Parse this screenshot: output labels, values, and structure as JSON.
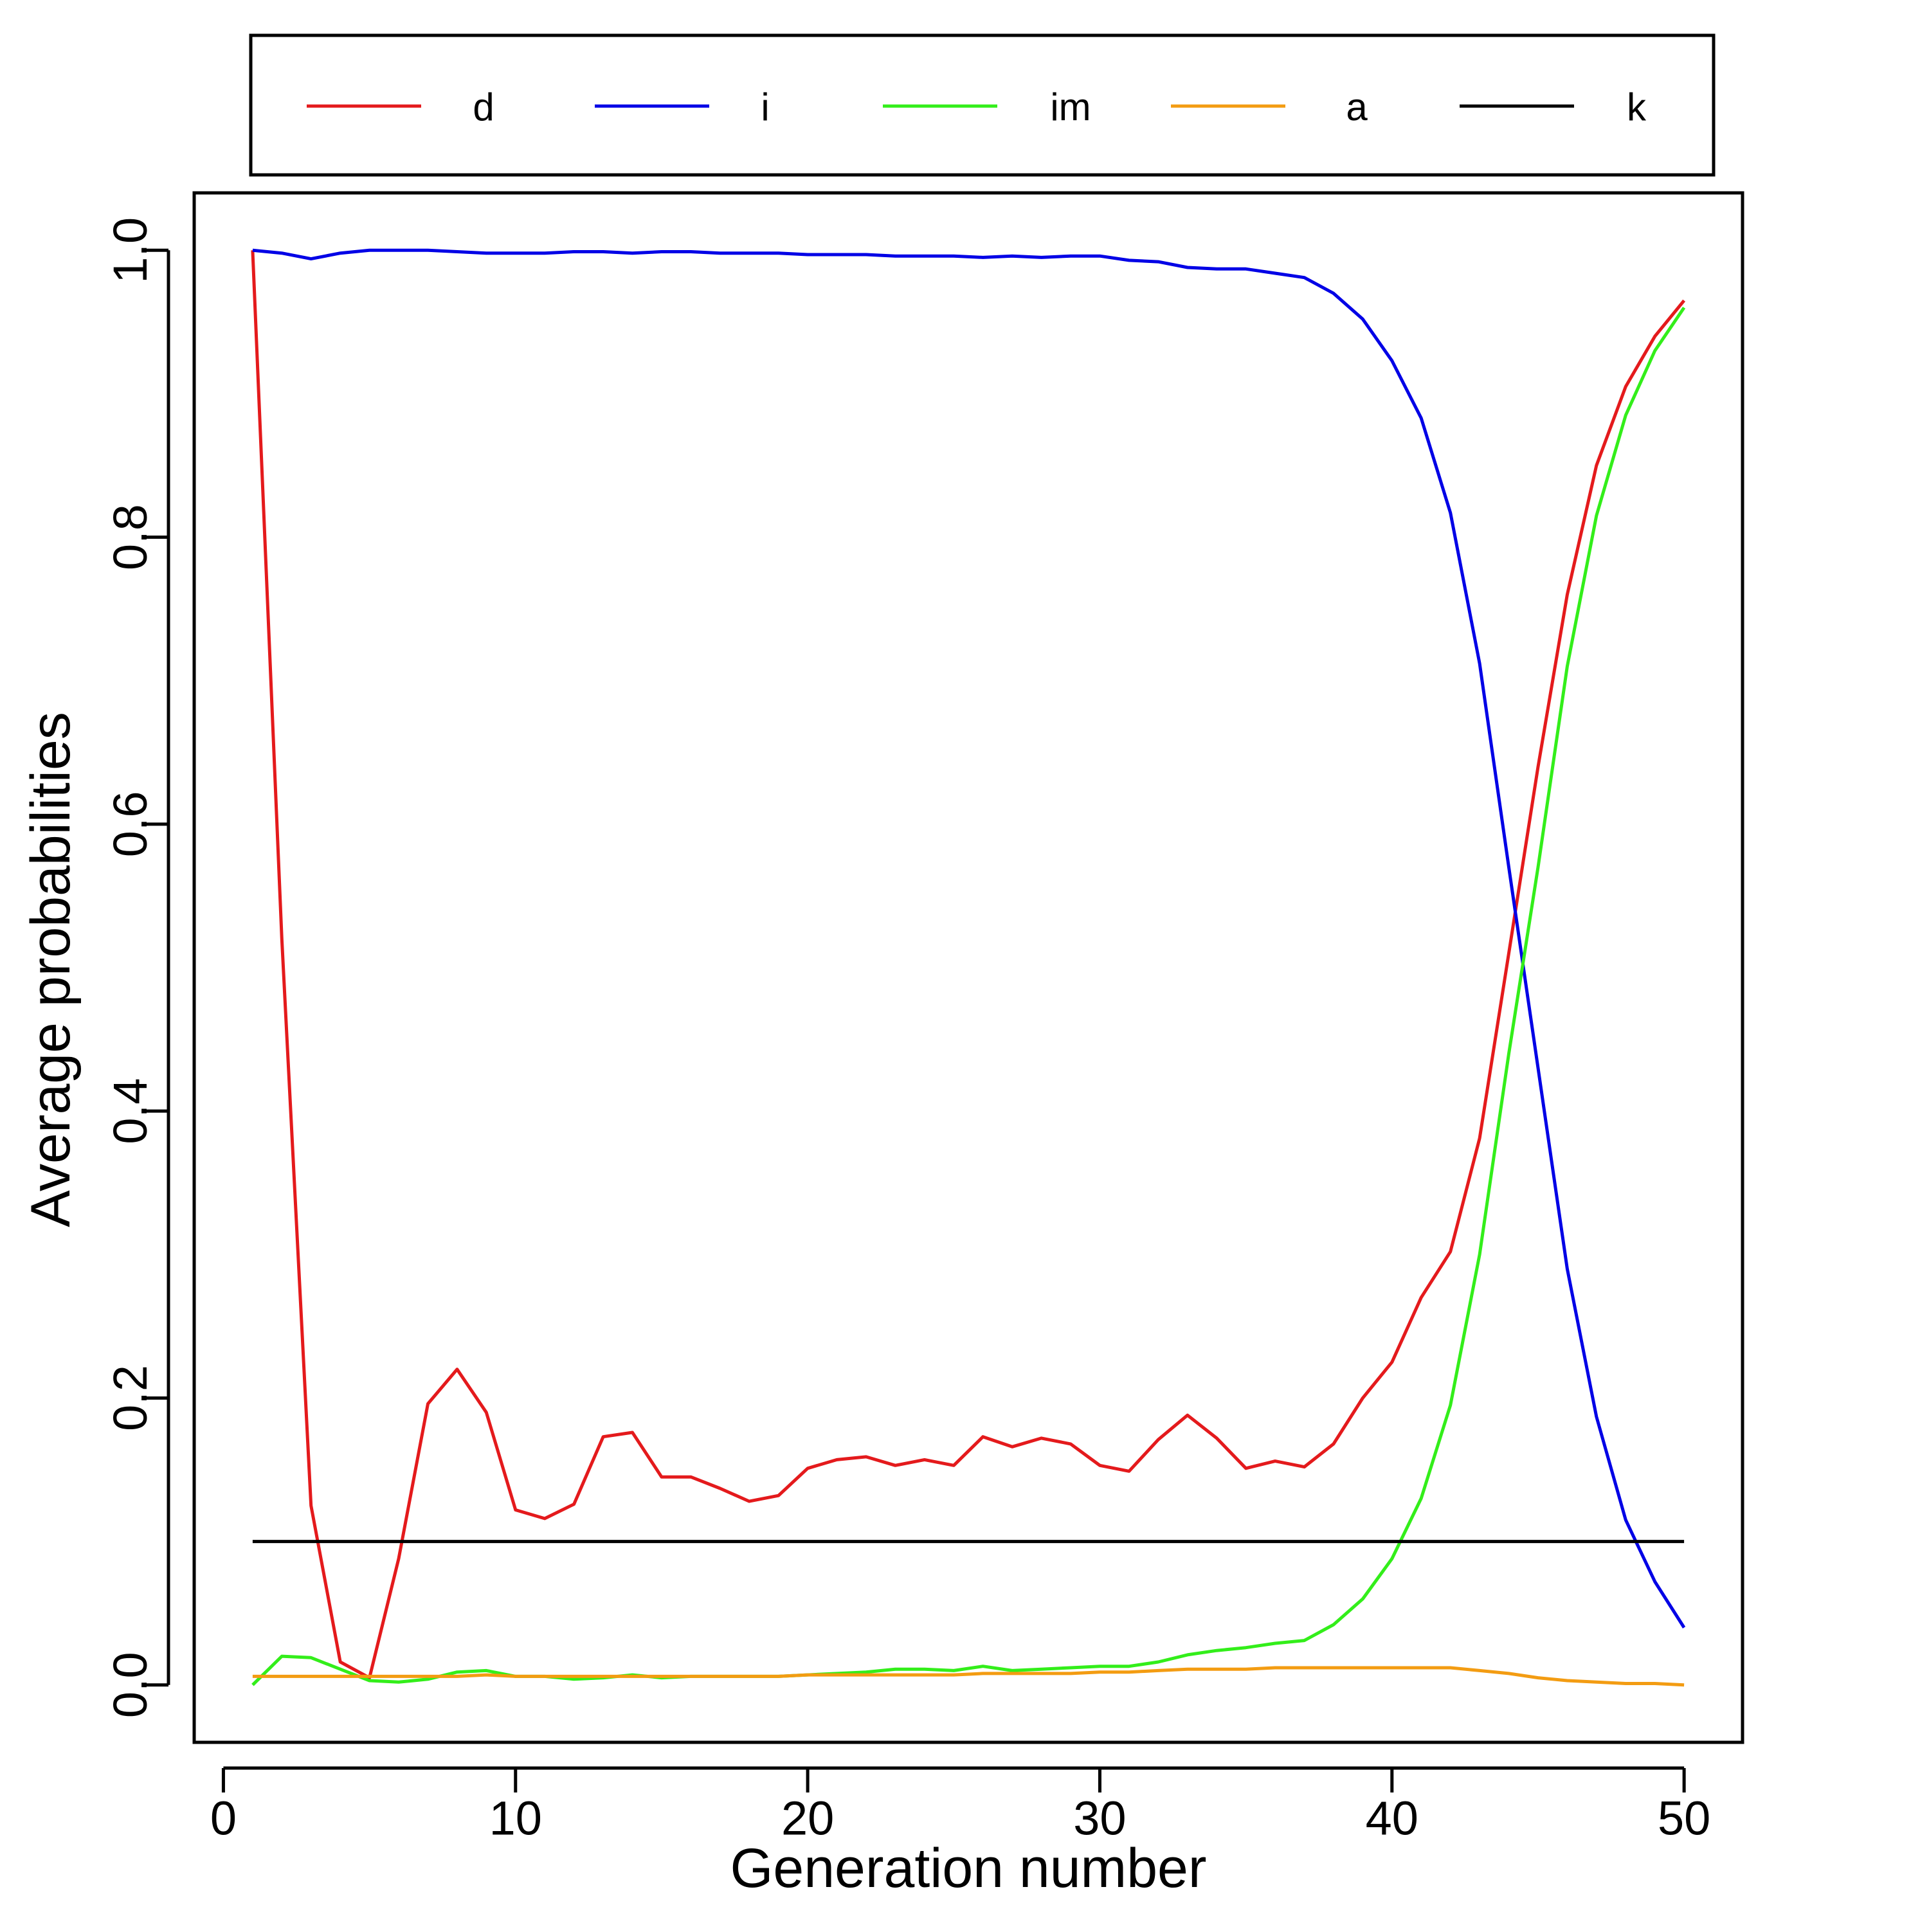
{
  "chart_data": {
    "type": "line",
    "title": "",
    "xlabel": "Generation number",
    "ylabel": "Average probabilities",
    "xlim": [
      -1,
      52
    ],
    "ylim": [
      -0.04,
      1.04
    ],
    "xticks": [
      0,
      10,
      20,
      30,
      40,
      50
    ],
    "xtick_labels": [
      "0",
      "10",
      "20",
      "30",
      "40",
      "50"
    ],
    "yticks": [
      0.0,
      0.2,
      0.4,
      0.6,
      0.8,
      1.0
    ],
    "ytick_labels": [
      "0.0",
      "0.2",
      "0.4",
      "0.6",
      "0.8",
      "1.0"
    ],
    "grid": false,
    "legend_position": "top",
    "x": [
      1,
      2,
      3,
      4,
      5,
      6,
      7,
      8,
      9,
      10,
      11,
      12,
      13,
      14,
      15,
      16,
      17,
      18,
      19,
      20,
      21,
      22,
      23,
      24,
      25,
      26,
      27,
      28,
      29,
      30,
      31,
      32,
      33,
      34,
      35,
      36,
      37,
      38,
      39,
      40,
      41,
      42,
      43,
      44,
      45,
      46,
      47,
      48,
      49,
      50
    ],
    "series": [
      {
        "name": "d",
        "color": "#e41a1c",
        "values": [
          1.0,
          0.52,
          0.125,
          0.016,
          0.005,
          0.088,
          0.196,
          0.22,
          0.19,
          0.122,
          0.116,
          0.126,
          0.173,
          0.176,
          0.145,
          0.145,
          0.137,
          0.128,
          0.132,
          0.151,
          0.157,
          0.159,
          0.153,
          0.157,
          0.153,
          0.173,
          0.166,
          0.172,
          0.168,
          0.153,
          0.149,
          0.171,
          0.188,
          0.172,
          0.151,
          0.156,
          0.152,
          0.168,
          0.2,
          0.225,
          0.27,
          0.302,
          0.381,
          0.51,
          0.64,
          0.76,
          0.85,
          0.905,
          0.94,
          0.965
        ]
      },
      {
        "name": "i",
        "color": "#0000e6",
        "values": [
          1.0,
          0.998,
          0.994,
          0.998,
          1.0,
          1.0,
          1.0,
          0.999,
          0.998,
          0.998,
          0.998,
          0.999,
          0.999,
          0.998,
          0.999,
          0.999,
          0.998,
          0.998,
          0.998,
          0.997,
          0.997,
          0.997,
          0.996,
          0.996,
          0.996,
          0.995,
          0.996,
          0.995,
          0.996,
          0.996,
          0.993,
          0.992,
          0.988,
          0.987,
          0.987,
          0.984,
          0.981,
          0.97,
          0.952,
          0.923,
          0.883,
          0.817,
          0.712,
          0.57,
          0.43,
          0.29,
          0.187,
          0.115,
          0.072,
          0.04
        ]
      },
      {
        "name": "im",
        "color": "#33ee1a",
        "values": [
          0.0,
          0.02,
          0.019,
          0.011,
          0.003,
          0.002,
          0.004,
          0.009,
          0.01,
          0.006,
          0.006,
          0.004,
          0.005,
          0.007,
          0.005,
          0.006,
          0.006,
          0.006,
          0.006,
          0.007,
          0.008,
          0.009,
          0.011,
          0.011,
          0.01,
          0.013,
          0.01,
          0.011,
          0.012,
          0.013,
          0.013,
          0.016,
          0.021,
          0.024,
          0.026,
          0.029,
          0.031,
          0.042,
          0.06,
          0.088,
          0.13,
          0.195,
          0.3,
          0.44,
          0.57,
          0.71,
          0.815,
          0.885,
          0.93,
          0.96
        ]
      },
      {
        "name": "a",
        "color": "#f39c12",
        "values": [
          0.006,
          0.006,
          0.006,
          0.006,
          0.006,
          0.006,
          0.006,
          0.006,
          0.007,
          0.006,
          0.006,
          0.006,
          0.006,
          0.006,
          0.006,
          0.006,
          0.006,
          0.006,
          0.006,
          0.007,
          0.007,
          0.007,
          0.007,
          0.007,
          0.007,
          0.008,
          0.008,
          0.008,
          0.008,
          0.009,
          0.009,
          0.01,
          0.011,
          0.011,
          0.011,
          0.012,
          0.012,
          0.012,
          0.012,
          0.012,
          0.012,
          0.012,
          0.01,
          0.008,
          0.005,
          0.003,
          0.002,
          0.001,
          0.001,
          0.0
        ]
      },
      {
        "name": "k",
        "color": "#000000",
        "values": [
          0.1,
          0.1,
          0.1,
          0.1,
          0.1,
          0.1,
          0.1,
          0.1,
          0.1,
          0.1,
          0.1,
          0.1,
          0.1,
          0.1,
          0.1,
          0.1,
          0.1,
          0.1,
          0.1,
          0.1,
          0.1,
          0.1,
          0.1,
          0.1,
          0.1,
          0.1,
          0.1,
          0.1,
          0.1,
          0.1,
          0.1,
          0.1,
          0.1,
          0.1,
          0.1,
          0.1,
          0.1,
          0.1,
          0.1,
          0.1,
          0.1,
          0.1,
          0.1,
          0.1,
          0.1,
          0.1,
          0.1,
          0.1,
          0.1,
          0.1
        ]
      }
    ]
  }
}
